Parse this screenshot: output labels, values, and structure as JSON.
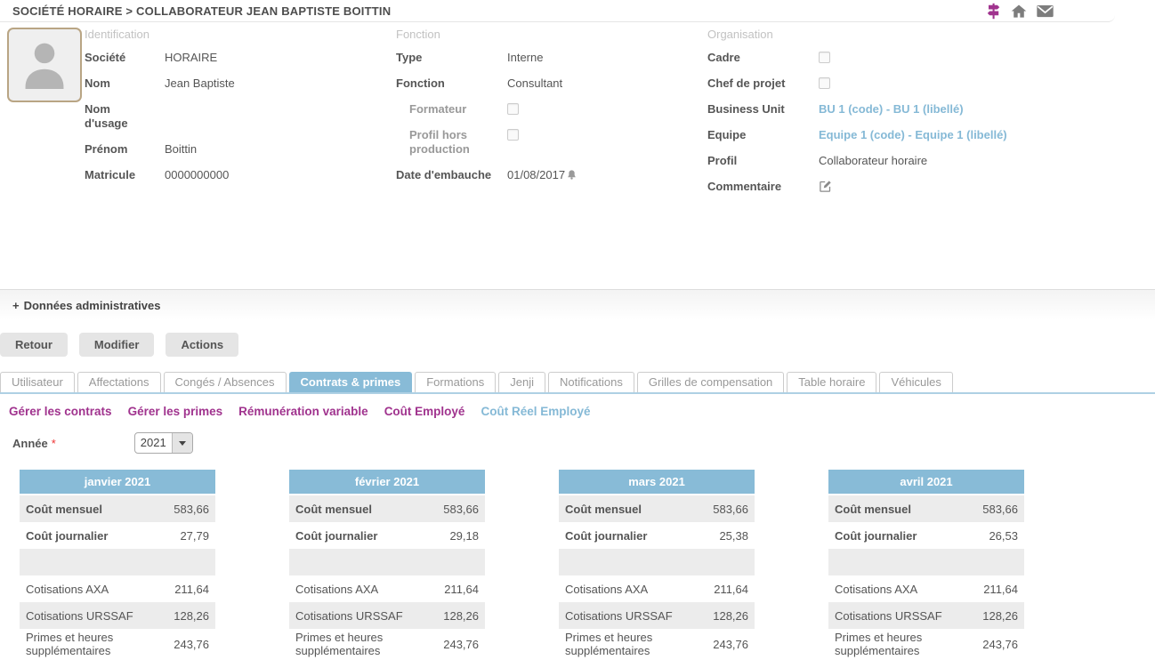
{
  "colors": {
    "accent_magenta": "#a0338e",
    "accent_blue": "#88bbd7",
    "link_blue": "#85b9d6",
    "row_shade": "#ececec"
  },
  "header": {
    "title": "SOCIÉTÉ HORAIRE > COLLABORATEUR JEAN BAPTISTE BOITTIN",
    "icons": [
      "signpost-icon",
      "home-icon",
      "mail-icon"
    ]
  },
  "identification": {
    "title": "Identification",
    "societe_label": "Société",
    "societe_value": "HORAIRE",
    "nom_label": "Nom",
    "nom_value": "Jean Baptiste",
    "nom_usage_label": "Nom d'usage",
    "nom_usage_value": "",
    "prenom_label": "Prénom",
    "prenom_value": "Boittin",
    "matricule_label": "Matricule",
    "matricule_value": "0000000000"
  },
  "fonction": {
    "title": "Fonction",
    "type_label": "Type",
    "type_value": "Interne",
    "fonction_label": "Fonction",
    "fonction_value": "Consultant",
    "formateur_label": "Formateur",
    "formateur_checked": false,
    "profil_hors_label": "Profil hors production",
    "profil_hors_checked": false,
    "date_embauche_label": "Date d'embauche",
    "date_embauche_value": "01/08/2017"
  },
  "organisation": {
    "title": "Organisation",
    "cadre_label": "Cadre",
    "cadre_checked": false,
    "chef_projet_label": "Chef de projet",
    "chef_projet_checked": false,
    "business_unit_label": "Business Unit",
    "business_unit_value": "BU 1 (code) - BU 1 (libellé)",
    "equipe_label": "Equipe",
    "equipe_value": "Equipe 1 (code) - Equipe 1 (libellé)",
    "profil_label": "Profil",
    "profil_value": "Collaborateur horaire",
    "commentaire_label": "Commentaire"
  },
  "admin_section": {
    "toggle": "+",
    "label": "Données administratives"
  },
  "action_buttons": {
    "retour": "Retour",
    "modifier": "Modifier",
    "actions": "Actions"
  },
  "tabs": [
    {
      "label": "Utilisateur",
      "active": false
    },
    {
      "label": "Affectations",
      "active": false
    },
    {
      "label": "Congés / Absences",
      "active": false
    },
    {
      "label": "Contrats & primes",
      "active": true
    },
    {
      "label": "Formations",
      "active": false
    },
    {
      "label": "Jenji",
      "active": false
    },
    {
      "label": "Notifications",
      "active": false
    },
    {
      "label": "Grilles de compensation",
      "active": false
    },
    {
      "label": "Table horaire",
      "active": false
    },
    {
      "label": "Véhicules",
      "active": false
    }
  ],
  "subnav": [
    {
      "label": "Gérer les contrats",
      "active": false
    },
    {
      "label": "Gérer les primes",
      "active": false
    },
    {
      "label": "Rémunération variable",
      "active": false
    },
    {
      "label": "Coût Employé",
      "active": false
    },
    {
      "label": "Coût Réel Employé",
      "active": true
    }
  ],
  "year_filter": {
    "label": "Année",
    "required_mark": "*",
    "value": "2021"
  },
  "cost_tables": [
    {
      "month": "janvier 2021",
      "rows": [
        {
          "label": "Coût mensuel",
          "value": "583,66",
          "bold": true
        },
        {
          "label": "Coût journalier",
          "value": "27,79",
          "bold": true
        },
        {
          "label": "",
          "value": "",
          "bold": false
        },
        {
          "label": "Cotisations AXA",
          "value": "211,64",
          "bold": false
        },
        {
          "label": "Cotisations URSSAF",
          "value": "128,26",
          "bold": false
        },
        {
          "label": "Primes et heures supplémentaires",
          "value": "243,76",
          "bold": false
        }
      ]
    },
    {
      "month": "février 2021",
      "rows": [
        {
          "label": "Coût mensuel",
          "value": "583,66",
          "bold": true
        },
        {
          "label": "Coût journalier",
          "value": "29,18",
          "bold": true
        },
        {
          "label": "",
          "value": "",
          "bold": false
        },
        {
          "label": "Cotisations AXA",
          "value": "211,64",
          "bold": false
        },
        {
          "label": "Cotisations URSSAF",
          "value": "128,26",
          "bold": false
        },
        {
          "label": "Primes et heures supplémentaires",
          "value": "243,76",
          "bold": false
        }
      ]
    },
    {
      "month": "mars 2021",
      "rows": [
        {
          "label": "Coût mensuel",
          "value": "583,66",
          "bold": true
        },
        {
          "label": "Coût journalier",
          "value": "25,38",
          "bold": true
        },
        {
          "label": "",
          "value": "",
          "bold": false
        },
        {
          "label": "Cotisations AXA",
          "value": "211,64",
          "bold": false
        },
        {
          "label": "Cotisations URSSAF",
          "value": "128,26",
          "bold": false
        },
        {
          "label": "Primes et heures supplémentaires",
          "value": "243,76",
          "bold": false
        }
      ]
    },
    {
      "month": "avril 2021",
      "rows": [
        {
          "label": "Coût mensuel",
          "value": "583,66",
          "bold": true
        },
        {
          "label": "Coût journalier",
          "value": "26,53",
          "bold": true
        },
        {
          "label": "",
          "value": "",
          "bold": false
        },
        {
          "label": "Cotisations AXA",
          "value": "211,64",
          "bold": false
        },
        {
          "label": "Cotisations URSSAF",
          "value": "128,26",
          "bold": false
        },
        {
          "label": "Primes et heures supplémentaires",
          "value": "243,76",
          "bold": false
        }
      ]
    }
  ]
}
